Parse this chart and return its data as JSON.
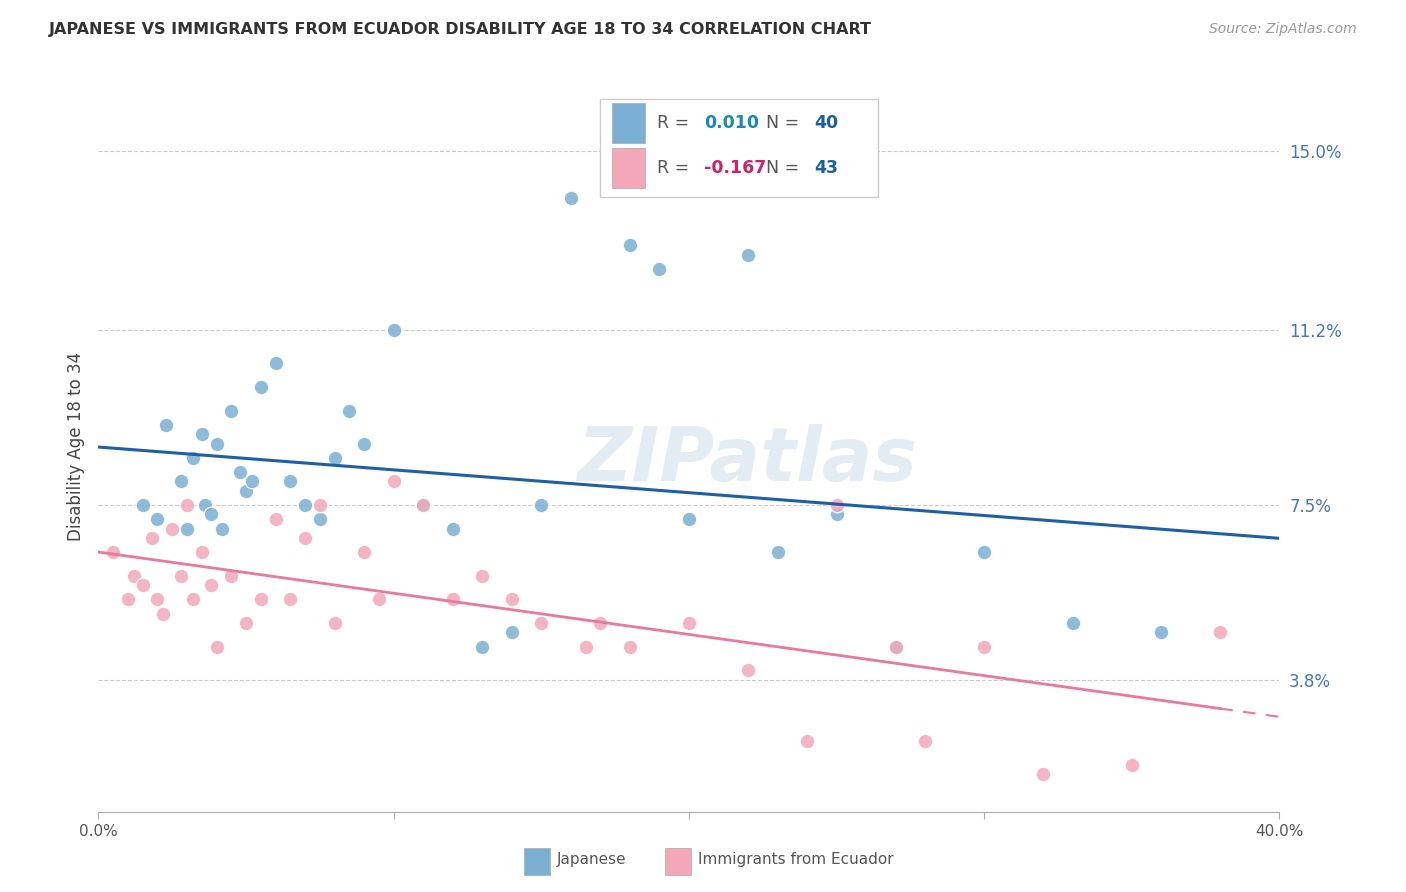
{
  "title": "JAPANESE VS IMMIGRANTS FROM ECUADOR DISABILITY AGE 18 TO 34 CORRELATION CHART",
  "source": "Source: ZipAtlas.com",
  "ylabel": "Disability Age 18 to 34",
  "ytick_values": [
    3.8,
    7.5,
    11.2,
    15.0
  ],
  "xlim": [
    0.0,
    40.0
  ],
  "ylim": [
    1.0,
    16.5
  ],
  "legend1_r": "0.010",
  "legend1_n": "40",
  "legend2_r": "-0.167",
  "legend2_n": "43",
  "color_japanese": "#7bafd4",
  "color_ecuador": "#f4a7b9",
  "color_line_japanese": "#1f5fa6",
  "color_line_ecuador": "#e8799f",
  "watermark": "ZIPatlas",
  "japanese_x": [
    1.5,
    2.0,
    2.3,
    2.8,
    3.0,
    3.2,
    3.5,
    3.6,
    3.8,
    4.0,
    4.2,
    4.5,
    4.8,
    5.0,
    5.2,
    5.5,
    6.0,
    6.5,
    7.0,
    7.5,
    8.0,
    8.5,
    9.0,
    10.0,
    11.0,
    12.0,
    13.0,
    14.0,
    15.0,
    16.0,
    18.0,
    19.0,
    20.0,
    22.0,
    23.0,
    25.0,
    27.0,
    30.0,
    33.0,
    36.0
  ],
  "japanese_y": [
    7.5,
    7.2,
    9.2,
    8.0,
    7.0,
    8.5,
    9.0,
    7.5,
    7.3,
    8.8,
    7.0,
    9.5,
    8.2,
    7.8,
    8.0,
    10.0,
    10.5,
    8.0,
    7.5,
    7.2,
    8.5,
    9.5,
    8.8,
    11.2,
    7.5,
    7.0,
    4.5,
    4.8,
    7.5,
    14.0,
    13.0,
    12.5,
    7.2,
    12.8,
    6.5,
    7.3,
    4.5,
    6.5,
    5.0,
    4.8
  ],
  "ecuador_x": [
    0.5,
    1.0,
    1.2,
    1.5,
    1.8,
    2.0,
    2.2,
    2.5,
    2.8,
    3.0,
    3.2,
    3.5,
    3.8,
    4.0,
    4.5,
    5.0,
    5.5,
    6.0,
    6.5,
    7.0,
    7.5,
    8.0,
    9.0,
    9.5,
    10.0,
    11.0,
    12.0,
    13.0,
    14.0,
    15.0,
    16.5,
    17.0,
    18.0,
    20.0,
    22.0,
    24.0,
    25.0,
    27.0,
    28.0,
    30.0,
    32.0,
    35.0,
    38.0
  ],
  "ecuador_y": [
    6.5,
    5.5,
    6.0,
    5.8,
    6.8,
    5.5,
    5.2,
    7.0,
    6.0,
    7.5,
    5.5,
    6.5,
    5.8,
    4.5,
    6.0,
    5.0,
    5.5,
    7.2,
    5.5,
    6.8,
    7.5,
    5.0,
    6.5,
    5.5,
    8.0,
    7.5,
    5.5,
    6.0,
    5.5,
    5.0,
    4.5,
    5.0,
    4.5,
    5.0,
    4.0,
    2.5,
    7.5,
    4.5,
    2.5,
    4.5,
    1.8,
    2.0,
    4.8
  ]
}
